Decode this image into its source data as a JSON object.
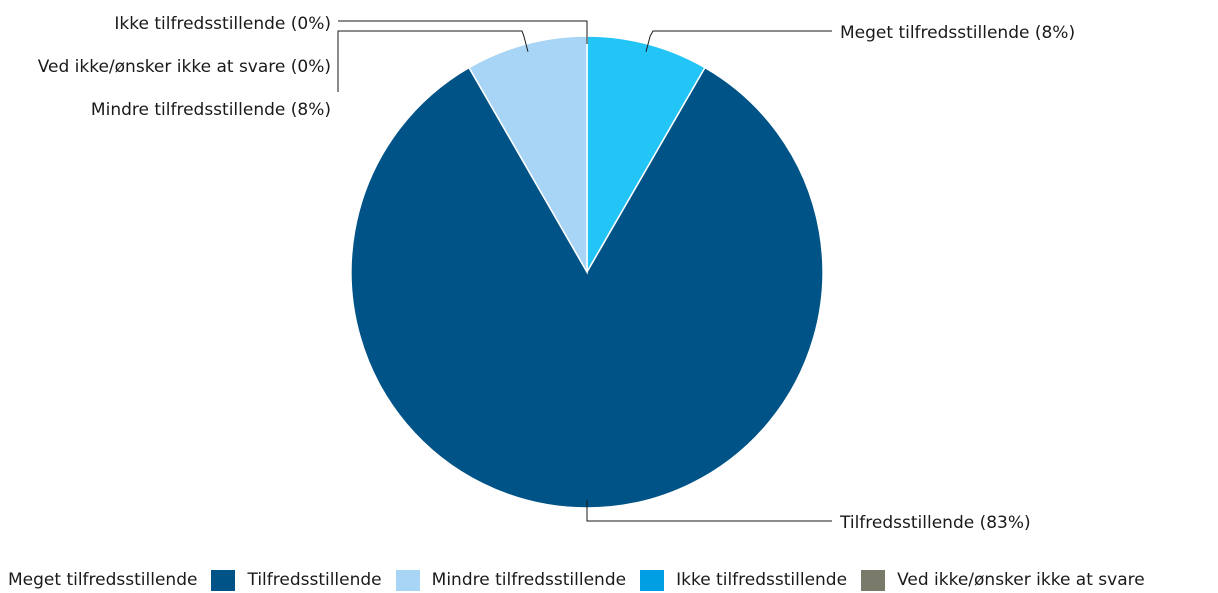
{
  "chart_data": {
    "type": "pie",
    "start_angle": "12 o'clock, clockwise",
    "slices": [
      {
        "label": "Meget tilfredsstillende",
        "value": 8.33,
        "display": "Meget tilfredsstillende (8%)",
        "color": "#22C5F5"
      },
      {
        "label": "Tilfredsstillende",
        "value": 83.33,
        "display": "Tilfredsstillende (83%)",
        "color": "#005386"
      },
      {
        "label": "Mindre tilfredsstillende",
        "value": 8.33,
        "display": "Mindre tilfredsstillende (8%)",
        "color": "#A8D4F5"
      },
      {
        "label": "Ikke tilfredsstillende",
        "value": 0,
        "display": "Ikke tilfredsstillende (0%)",
        "color": "#009FE3"
      },
      {
        "label": "Ved ikke/ønsker ikke at svare",
        "value": 0,
        "display": "Ved ikke/ønsker ikke at svare (0%)",
        "color": "#7A7A6A"
      }
    ],
    "legend": {
      "position": "bottom",
      "items": [
        {
          "label": "Meget tilfredsstillende",
          "color": "#22C5F5"
        },
        {
          "label": "Tilfredsstillende",
          "color": "#005386"
        },
        {
          "label": "Mindre tilfredsstillende",
          "color": "#A8D4F5"
        },
        {
          "label": "Ikke tilfredsstillende",
          "color": "#009FE3"
        },
        {
          "label": "Ved ikke/ønsker ikke at svare",
          "color": "#7A7A6A"
        }
      ]
    }
  }
}
